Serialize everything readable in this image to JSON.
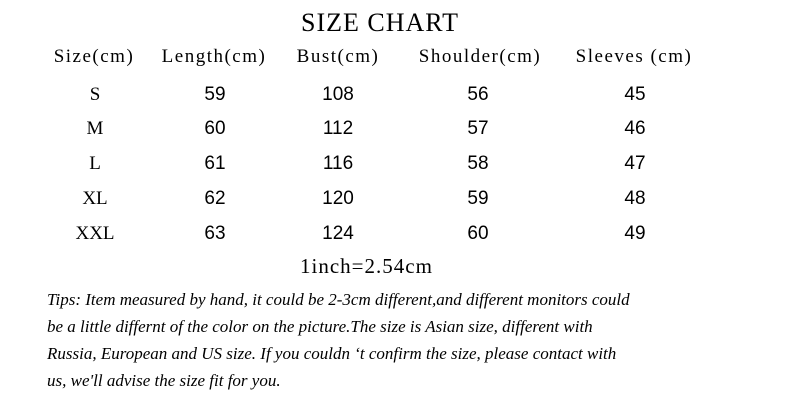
{
  "title": "SIZE CHART",
  "columns": [
    "Size(cm)",
    "Length(cm)",
    "Bust(cm)",
    "Shoulder(cm)",
    "Sleeves (cm)"
  ],
  "rows": [
    [
      "S",
      "59",
      "108",
      "56",
      "45"
    ],
    [
      "M",
      "60",
      "112",
      "57",
      "46"
    ],
    [
      "L",
      "61",
      "116",
      "58",
      "47"
    ],
    [
      "XL",
      "62",
      "120",
      "59",
      "48"
    ],
    [
      "XXL",
      "63",
      "124",
      "60",
      "49"
    ]
  ],
  "conversion": "1inch=2.54cm",
  "tips": [
    "Tips: Item measured by hand, it could be 2-3cm different,and different monitors could",
    "be a little differnt of the color on the picture.The size is Asian size, different with",
    "Russia, European and US size. If you couldn ‘t confirm the size, please contact with",
    "us, we'll advise the size fit for you."
  ]
}
